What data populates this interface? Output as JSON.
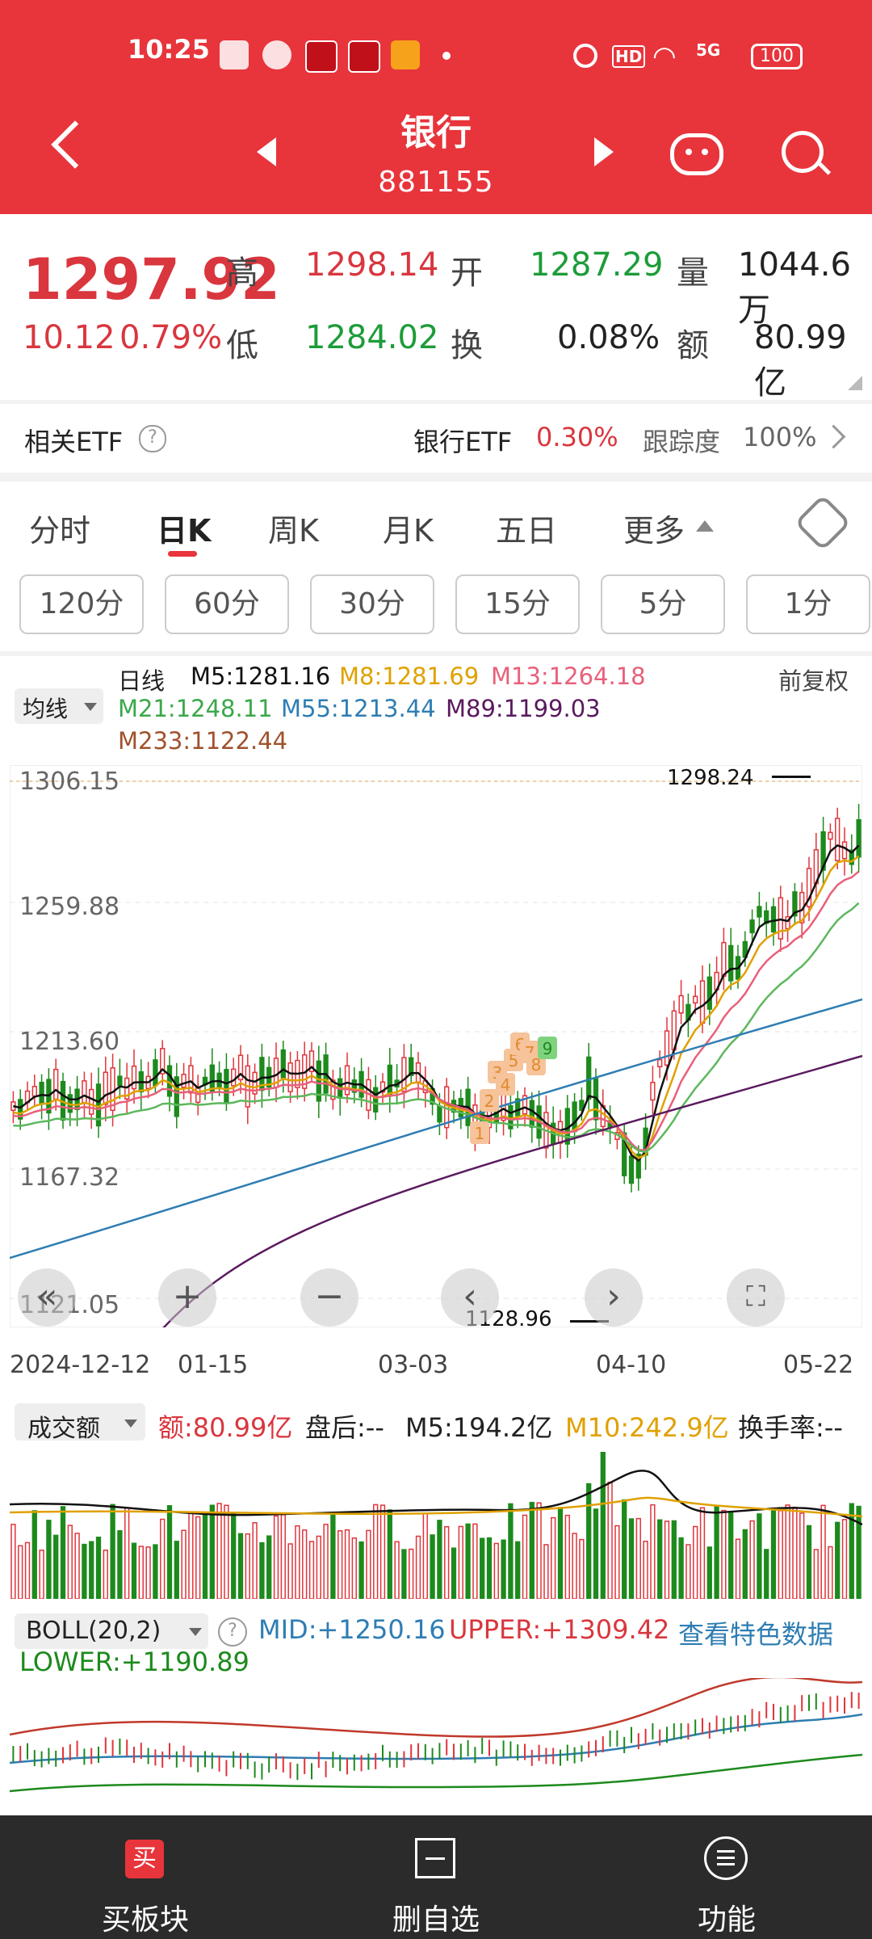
{
  "status_bar": {
    "time": "10:25",
    "battery": "100",
    "network": "5G",
    "hd": "HD"
  },
  "header": {
    "title": "银行",
    "code": "881155"
  },
  "quote": {
    "price": "1297.92",
    "change": "10.12",
    "change_pct": "0.79%",
    "high_label": "高",
    "high": "1298.14",
    "open_label": "开",
    "open": "1287.29",
    "volume_label": "量",
    "volume": "1044.6万",
    "low_label": "低",
    "low": "1284.02",
    "turnover_label": "换",
    "turnover": "0.08%",
    "amount_label": "额",
    "amount": "80.99亿"
  },
  "etf": {
    "label": "相关ETF",
    "name": "银行ETF",
    "pct": "0.30%",
    "tracking_label": "跟踪度",
    "tracking": "100%"
  },
  "tabs": [
    {
      "label": "分时"
    },
    {
      "label": "日K"
    },
    {
      "label": "周K"
    },
    {
      "label": "月K"
    },
    {
      "label": "五日"
    },
    {
      "label": "更多"
    }
  ],
  "intervals": [
    "120分",
    "60分",
    "30分",
    "15分",
    "5分",
    "1分"
  ],
  "ma_selector": "均线",
  "ma_legend": {
    "period": "日线",
    "m5": "M5:1281.16",
    "m8": "M8:1281.69",
    "m13": "M13:1264.18",
    "m21": "M21:1248.11",
    "m55": "M55:1213.44",
    "m89": "M89:1199.03",
    "m233": "M233:1122.44",
    "adjust": "前复权"
  },
  "colors": {
    "m5": "#111111",
    "m8": "#e0a100",
    "m13": "#e8607a",
    "m21": "#5cb85c",
    "m55": "#2e7db3",
    "m89": "#5a1a5e",
    "m233": "#a0522d",
    "up": "#e0343b",
    "down": "#1d8a1d",
    "header": "#e8343b"
  },
  "price_axis": [
    "1306.15",
    "1259.88",
    "1213.60",
    "1167.32",
    "1121.05"
  ],
  "price_annotations": {
    "max": "1298.24",
    "min": "1128.96"
  },
  "date_axis": [
    "2024-12-12",
    "01-15",
    "03-03",
    "04-10",
    "05-22"
  ],
  "td_counts": [
    "1",
    "2",
    "3",
    "4",
    "5",
    "6",
    "7",
    "8",
    "9"
  ],
  "volume_panel": {
    "selector": "成交额",
    "amount": "额:80.99亿",
    "after_hours": "盘后:--",
    "m5": "M5:194.2亿",
    "m10": "M10:242.9亿",
    "turnover": "换手率:--"
  },
  "boll_panel": {
    "selector": "BOLL(20,2)",
    "mid": "MID:+1250.16",
    "upper": "UPPER:+1309.42",
    "link": "查看特色数据",
    "lower": "LOWER:+1190.89"
  },
  "bottom_nav": [
    {
      "label": "买板块",
      "icon": "买"
    },
    {
      "label": "删自选",
      "icon": "minus-box-icon"
    },
    {
      "label": "功能",
      "icon": "menu-icon"
    }
  ]
}
